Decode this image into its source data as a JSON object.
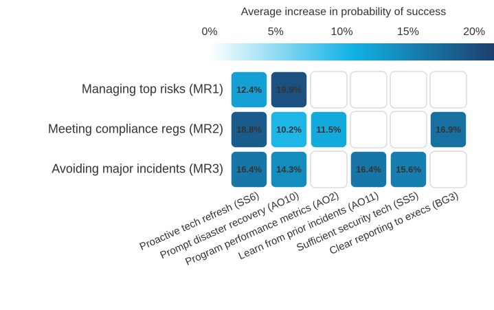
{
  "chart_data": {
    "type": "heatmap",
    "colorbar_title": "Average increase in probability of success",
    "rows": [
      "Managing top risks (MR1)",
      "Meeting compliance regs (MR2)",
      "Avoiding major incidents (MR3)"
    ],
    "columns": [
      "Proactive tech refresh (SS6)",
      "Prompt disaster recovery (AO10)",
      "Program performance metrics (AO2)",
      "Learn from prior incidents (AO11)",
      "Sufficient security tech (SS5)",
      "Clear reporting to execs (BG3)"
    ],
    "values": [
      [
        12.4,
        19.9,
        null,
        null,
        null,
        null
      ],
      [
        18.8,
        10.2,
        11.5,
        null,
        null,
        16.9
      ],
      [
        16.4,
        14.3,
        null,
        16.4,
        15.6,
        null
      ]
    ],
    "value_labels": [
      [
        "12.4%",
        "19.9%",
        null,
        null,
        null,
        null
      ],
      [
        "18.8%",
        "10.2%",
        "11.5%",
        null,
        null,
        "16.9%"
      ],
      [
        "16.4%",
        "14.3%",
        null,
        "16.4%",
        "15.6%",
        null
      ]
    ],
    "clim": [
      0,
      21.5
    ],
    "cticks": [
      {
        "value": 0,
        "label": "0%"
      },
      {
        "value": 5,
        "label": "5%"
      },
      {
        "value": 10,
        "label": "10%"
      },
      {
        "value": 15,
        "label": "15%"
      },
      {
        "value": 20,
        "label": "20%"
      }
    ],
    "colorscale": [
      "#ffffff",
      "#12b2e6",
      "#1c3f6e"
    ]
  }
}
